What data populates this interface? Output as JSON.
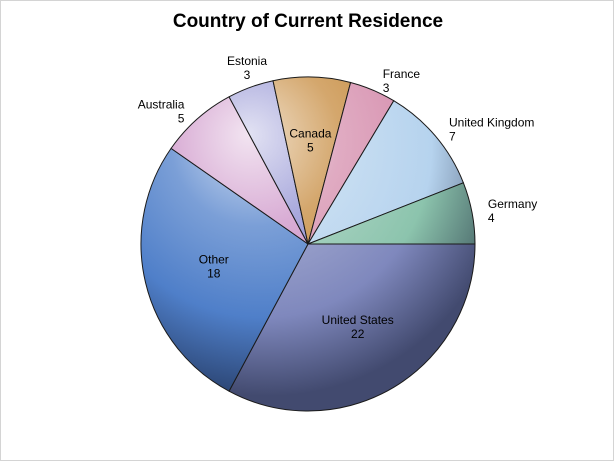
{
  "chart_data": {
    "type": "pie",
    "title": "Country of Current Residence",
    "slices": [
      {
        "label": "United States",
        "value": 22,
        "color": "#7f88bd"
      },
      {
        "label": "Other",
        "value": 18,
        "color": "#4f7fc9"
      },
      {
        "label": "Australia",
        "value": 5,
        "color": "#cc92c7"
      },
      {
        "label": "Estonia",
        "value": 3,
        "color": "#8b8bd0"
      },
      {
        "label": "Canada",
        "value": 5,
        "color": "#c58a3c"
      },
      {
        "label": "France",
        "value": 3,
        "color": "#d68fae"
      },
      {
        "label": "United Kingdom",
        "value": 7,
        "color": "#b6d3ee"
      },
      {
        "label": "Germany",
        "value": 4,
        "color": "#8cc4ad"
      }
    ],
    "start_angle": "3 o'clock, clockwise",
    "legend": "none"
  }
}
